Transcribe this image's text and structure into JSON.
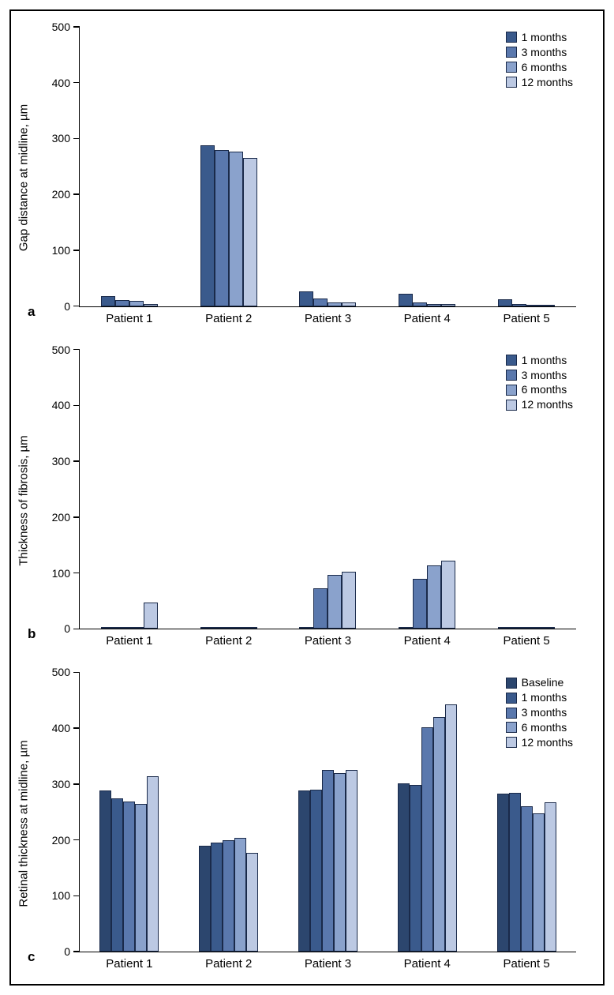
{
  "figure": {
    "border_color": "#000000",
    "background_color": "#ffffff",
    "panels": [
      {
        "id": "a",
        "letter": "a",
        "y_label": "Gap distance at midline, µm",
        "ylim": [
          0,
          500
        ],
        "ytick_step": 100,
        "categories": [
          "Patient 1",
          "Patient 2",
          "Patient 3",
          "Patient 4",
          "Patient 5"
        ],
        "series_labels": [
          "1 months",
          "3 months",
          "6 months",
          "12 months"
        ],
        "series_colors": [
          "#3a5a8c",
          "#5a78ad",
          "#8aa2cc",
          "#bcc9e3"
        ],
        "bar_border_color": "#1a2a4a",
        "values": [
          [
            18,
            11,
            9,
            4
          ],
          [
            288,
            279,
            276,
            266
          ],
          [
            27,
            13,
            6,
            7
          ],
          [
            22,
            6,
            4,
            4
          ],
          [
            12,
            4,
            2,
            2
          ]
        ]
      },
      {
        "id": "b",
        "letter": "b",
        "y_label": "Thickness of fibrosis, µm",
        "ylim": [
          0,
          500
        ],
        "ytick_step": 100,
        "categories": [
          "Patient 1",
          "Patient 2",
          "Patient 3",
          "Patient 4",
          "Patient 5"
        ],
        "series_labels": [
          "1 months",
          "3 months",
          "6 months",
          "12 months"
        ],
        "series_colors": [
          "#3a5a8c",
          "#5a78ad",
          "#8aa2cc",
          "#bcc9e3"
        ],
        "bar_border_color": "#1a2a4a",
        "values": [
          [
            1,
            1,
            1,
            47
          ],
          [
            1,
            1,
            1,
            3
          ],
          [
            1,
            72,
            96,
            103
          ],
          [
            1,
            89,
            113,
            122
          ],
          [
            1,
            1,
            1,
            2
          ]
        ]
      },
      {
        "id": "c",
        "letter": "c",
        "y_label": "Retinal thickness at midline, µm",
        "ylim": [
          0,
          500
        ],
        "ytick_step": 100,
        "categories": [
          "Patient 1",
          "Patient 2",
          "Patient 3",
          "Patient 4",
          "Patient 5"
        ],
        "series_labels": [
          "Baseline",
          "1 months",
          "3 months",
          "6 months",
          "12 months"
        ],
        "series_colors": [
          "#2c466e",
          "#3a5a8c",
          "#5a78ad",
          "#8aa2cc",
          "#bcc9e3"
        ],
        "bar_border_color": "#1a2a4a",
        "values": [
          [
            289,
            275,
            269,
            265,
            314
          ],
          [
            189,
            195,
            200,
            204,
            177
          ],
          [
            289,
            290,
            325,
            320,
            325
          ],
          [
            301,
            298,
            402,
            420,
            443
          ],
          [
            283,
            284,
            260,
            247,
            267
          ]
        ]
      }
    ],
    "axis_fontsize": 15,
    "tick_fontsize": 14,
    "legend_fontsize": 14,
    "panel_letter_fontsize": 17
  }
}
